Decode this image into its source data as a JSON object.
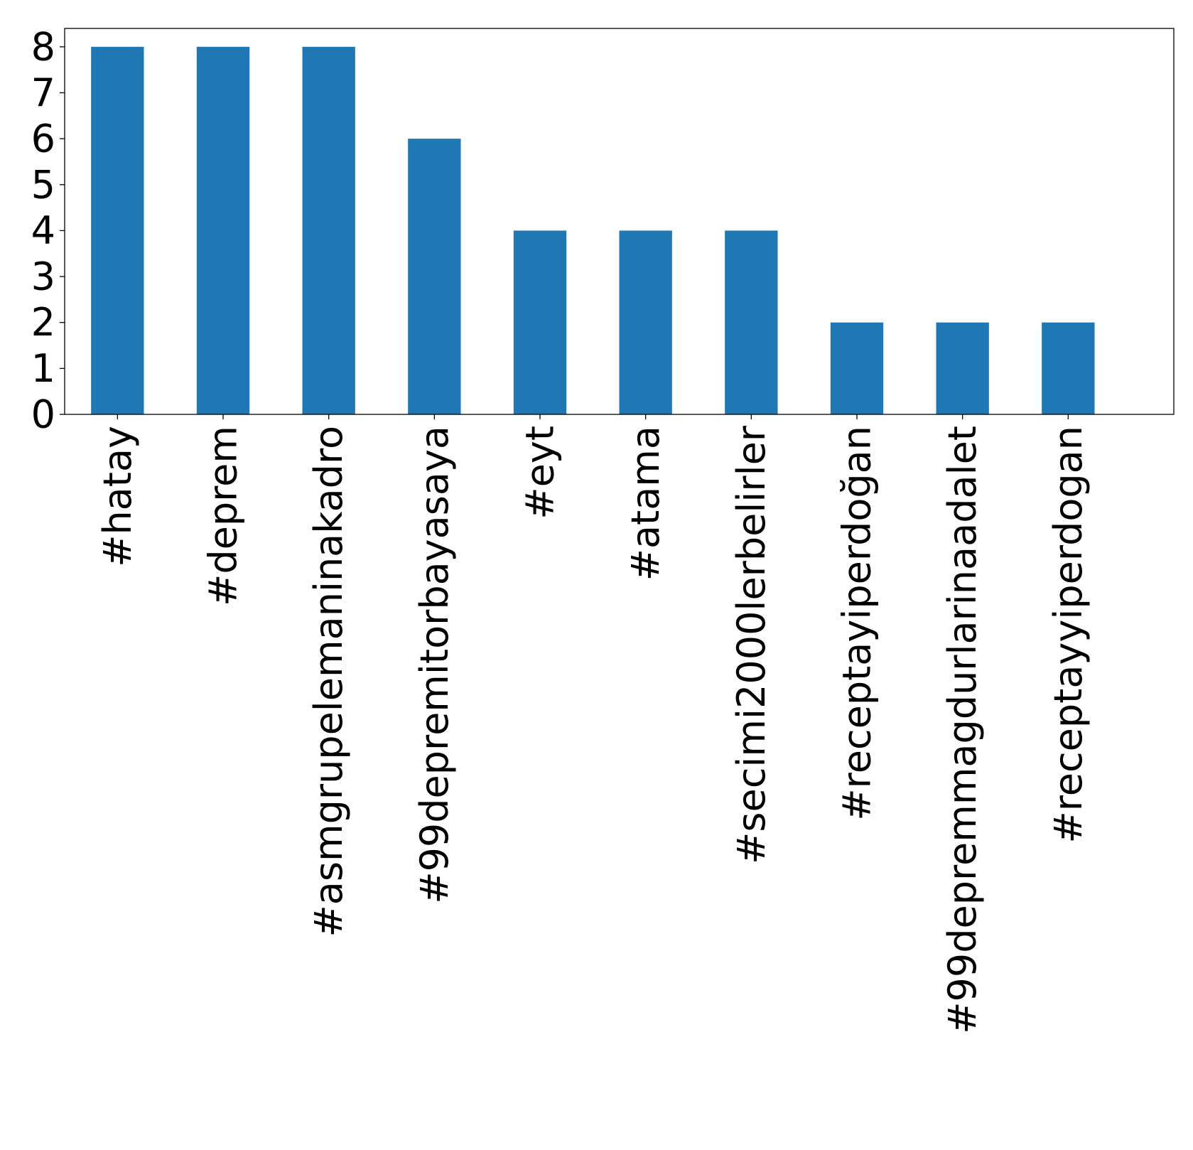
{
  "chart_data": {
    "type": "bar",
    "title": "",
    "xlabel": "",
    "ylabel": "",
    "categories": [
      "#hatay",
      "#deprem",
      "#asmgrupelemaninakadro",
      "#99depremitorbayasaya",
      "#eyt",
      "#atama",
      "#secimi2000lerbelirler",
      "#receptayiperdoğan",
      "#99depremmagdurlarinaadalet",
      "#receptayyiperdogan"
    ],
    "values": [
      8,
      8,
      8,
      6,
      4,
      4,
      4,
      2,
      2,
      2
    ],
    "yticks": [
      "0",
      "1",
      "2",
      "3",
      "4",
      "5",
      "6",
      "7",
      "8"
    ],
    "ylim": [
      0,
      8.4
    ],
    "grid": false,
    "legend": "none",
    "bar_color": "#1f77b4",
    "x_tick_rotation": "vertical"
  }
}
